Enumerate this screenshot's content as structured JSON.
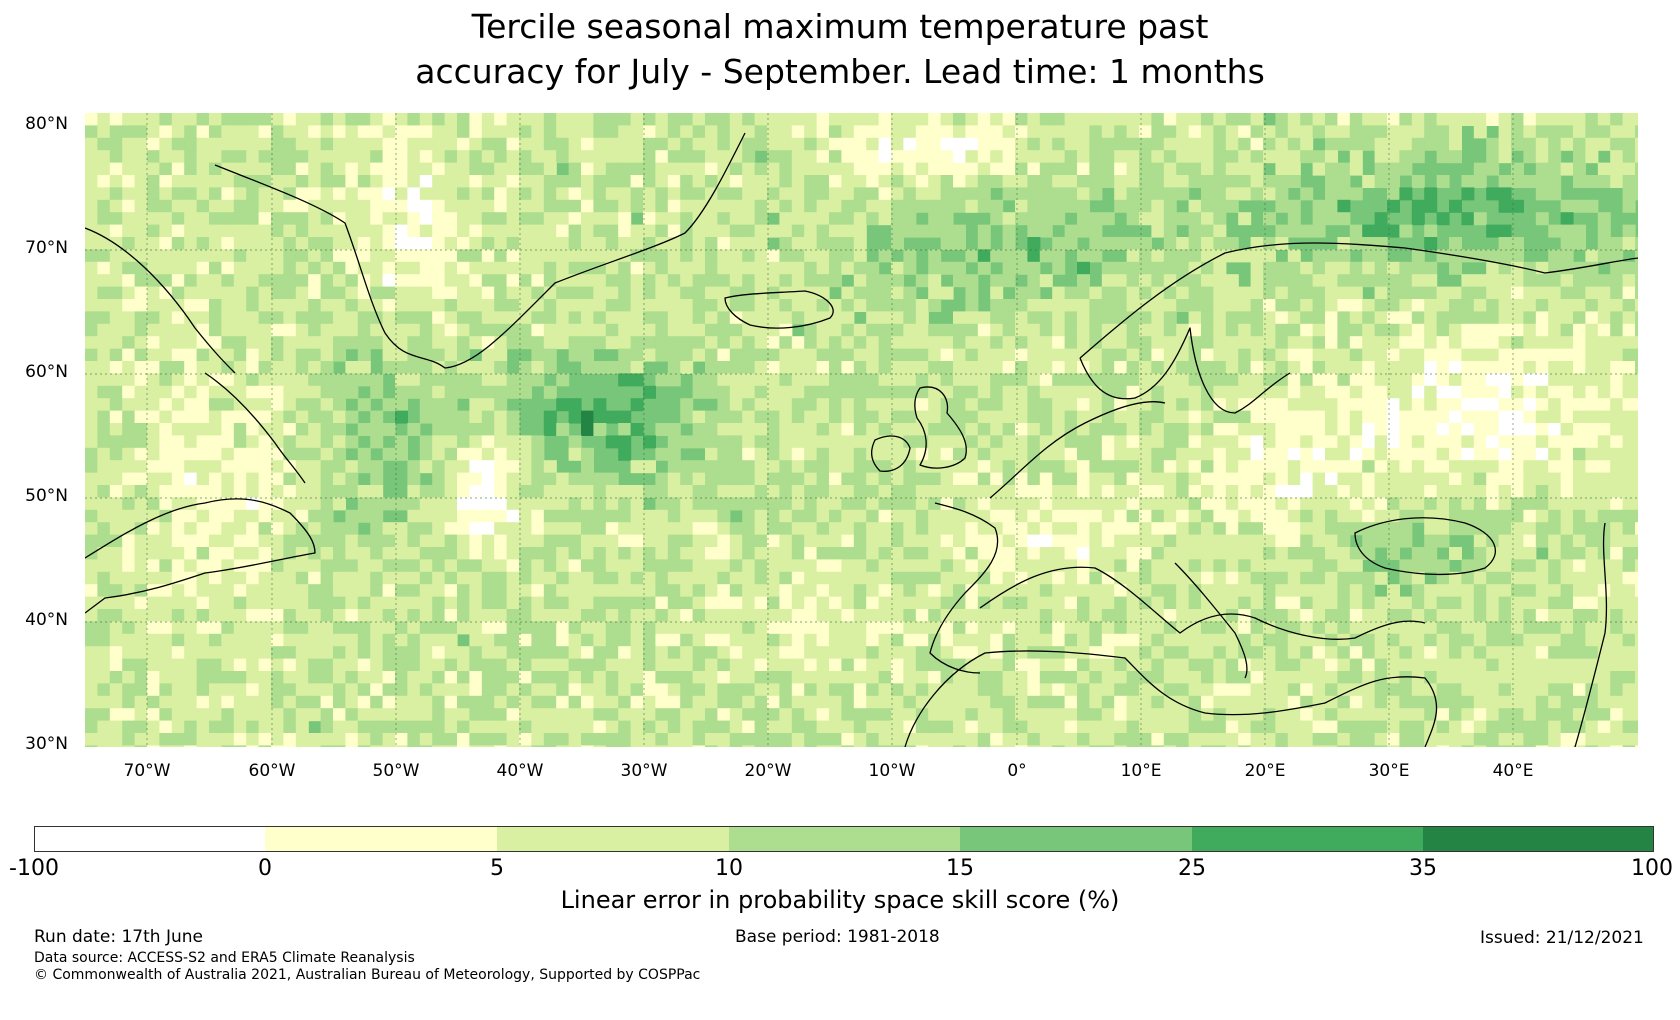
{
  "title": {
    "line1": "Tercile seasonal maximum temperature past",
    "line2": "accuracy for July - September. Lead time: 1 months"
  },
  "map": {
    "lat_labels": [
      "80°N",
      "70°N",
      "60°N",
      "50°N",
      "40°N",
      "30°N"
    ],
    "lon_labels": [
      "70°W",
      "60°W",
      "50°W",
      "40°W",
      "30°W",
      "20°W",
      "10°W",
      "0°",
      "10°E",
      "20°E",
      "30°E",
      "40°E"
    ],
    "lat_range": [
      30,
      81
    ],
    "lon_range": [
      -75,
      50
    ]
  },
  "colorbar": {
    "label": "Linear error in probability space skill score (%)",
    "ticks": [
      "-100",
      "0",
      "5",
      "10",
      "15",
      "25",
      "35",
      "100"
    ],
    "colors": [
      "#ffffff",
      "#ffffcc",
      "#d9f0a3",
      "#addd8e",
      "#78c679",
      "#41ab5d",
      "#238443"
    ]
  },
  "footer": {
    "run_date": "Run date: 17th June",
    "base_period": "Base period: 1981-2018",
    "issued": "Issued: 21/12/2021",
    "data_source": "Data source: ACCESS-S2 and ERA5 Climate Reanalysis",
    "copyright": "© Commonwealth of Australia 2021, Australian Bureau of Meteorology, Supported by COSPPac"
  }
}
